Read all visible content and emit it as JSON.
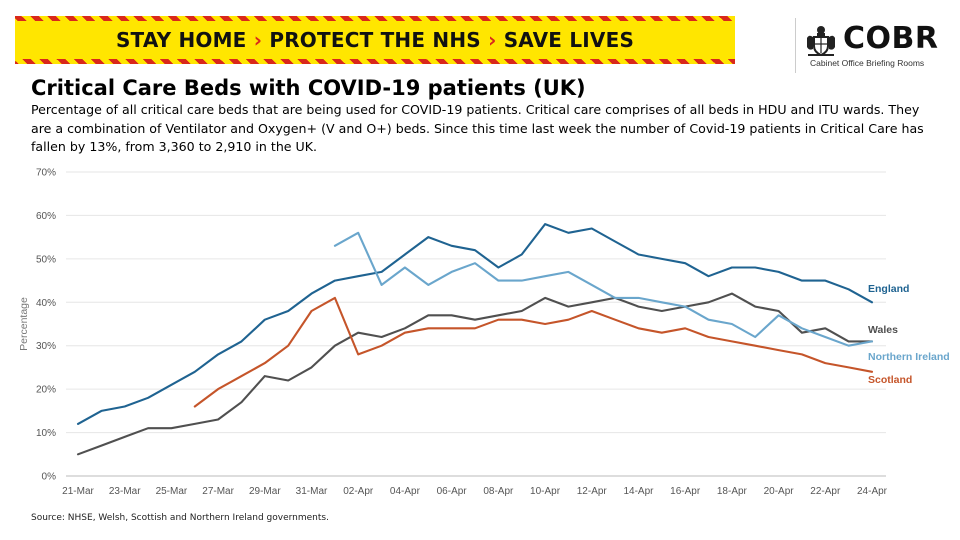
{
  "banner": {
    "part1": "STAY HOME",
    "sep": "›",
    "part2": "PROTECT THE NHS",
    "part3": "SAVE LIVES"
  },
  "logo": {
    "name": "COBR",
    "subtitle": "Cabinet Office Briefing Rooms",
    "icon": "royal-crest-icon"
  },
  "title": "Critical Care Beds with COVID-19 patients (UK)",
  "description": "Percentage of all critical care beds that are being used for COVID-19 patients. Critical care comprises of all beds in HDU and ITU wards. They are a combination of Ventilator and Oxygen+ (V and O+) beds. Since this time last week the number of Covid-19 patients in Critical Care has fallen by 13%, from 3,360 to 2,910 in the UK.",
  "source": "Source: NHSE, Welsh, Scottish and Northern Ireland governments.",
  "chart_data": {
    "type": "line",
    "title": "Critical Care Beds with COVID-19 patients (UK)",
    "xlabel": "",
    "ylabel": "Percentage",
    "ylim": [
      0,
      70
    ],
    "yticks": [
      0,
      10,
      20,
      30,
      40,
      50,
      60,
      70
    ],
    "ytick_labels": [
      "0%",
      "10%",
      "20%",
      "30%",
      "40%",
      "50%",
      "60%",
      "70%"
    ],
    "x": [
      "21-Mar",
      "22-Mar",
      "23-Mar",
      "24-Mar",
      "25-Mar",
      "26-Mar",
      "27-Mar",
      "28-Mar",
      "29-Mar",
      "30-Mar",
      "31-Mar",
      "01-Apr",
      "02-Apr",
      "03-Apr",
      "04-Apr",
      "05-Apr",
      "06-Apr",
      "07-Apr",
      "08-Apr",
      "09-Apr",
      "10-Apr",
      "11-Apr",
      "12-Apr",
      "13-Apr",
      "14-Apr",
      "15-Apr",
      "16-Apr",
      "17-Apr",
      "18-Apr",
      "19-Apr",
      "20-Apr",
      "21-Apr",
      "22-Apr",
      "23-Apr",
      "24-Apr"
    ],
    "xtick_labels": [
      "21-Mar",
      "23-Mar",
      "25-Mar",
      "27-Mar",
      "29-Mar",
      "31-Mar",
      "02-Apr",
      "04-Apr",
      "06-Apr",
      "08-Apr",
      "10-Apr",
      "12-Apr",
      "14-Apr",
      "16-Apr",
      "18-Apr",
      "20-Apr",
      "22-Apr",
      "24-Apr"
    ],
    "grid": true,
    "legend": "labels at line ends (right)",
    "series": [
      {
        "name": "England",
        "color": "#1f6391",
        "values": [
          12,
          15,
          16,
          18,
          21,
          24,
          28,
          31,
          36,
          38,
          42,
          45,
          46,
          47,
          51,
          55,
          53,
          52,
          48,
          51,
          58,
          56,
          57,
          54,
          51,
          50,
          49,
          46,
          48,
          48,
          47,
          45,
          45,
          43,
          40
        ]
      },
      {
        "name": "Wales",
        "color": "#505050",
        "values": [
          5,
          7,
          9,
          11,
          11,
          12,
          13,
          17,
          23,
          22,
          25,
          30,
          33,
          32,
          34,
          37,
          37,
          36,
          37,
          38,
          41,
          39,
          40,
          41,
          39,
          38,
          39,
          40,
          42,
          39,
          38,
          33,
          34,
          31,
          31
        ]
      },
      {
        "name": "Northern Ireland",
        "color": "#6aa6cc",
        "values": [
          null,
          null,
          null,
          null,
          null,
          null,
          null,
          null,
          null,
          null,
          null,
          53,
          56,
          44,
          48,
          44,
          47,
          49,
          45,
          45,
          46,
          47,
          44,
          41,
          41,
          40,
          39,
          36,
          35,
          32,
          37,
          34,
          32,
          30,
          31
        ]
      },
      {
        "name": "Scotland",
        "color": "#c5552a",
        "values": [
          null,
          null,
          null,
          null,
          null,
          16,
          20,
          23,
          26,
          30,
          38,
          41,
          28,
          30,
          33,
          34,
          34,
          34,
          36,
          36,
          35,
          36,
          38,
          36,
          34,
          33,
          34,
          32,
          31,
          30,
          29,
          28,
          26,
          25,
          24
        ]
      }
    ]
  }
}
